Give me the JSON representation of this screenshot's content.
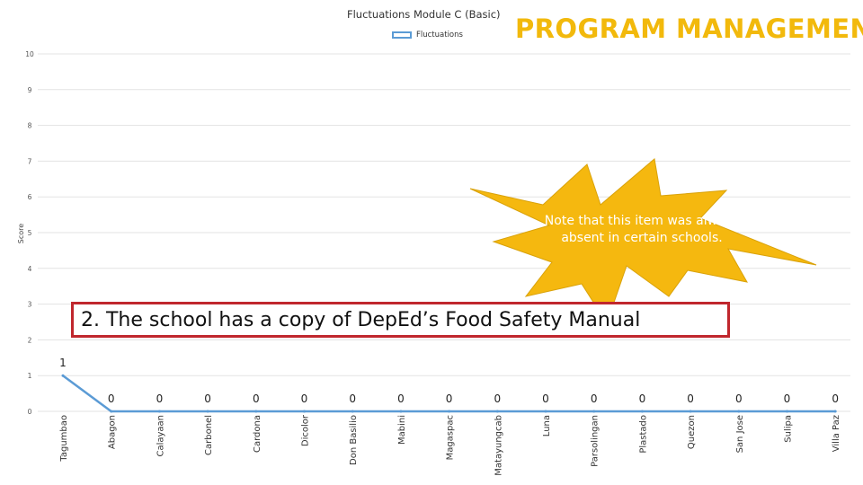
{
  "header": {
    "banner": "PROGRAM MANAGEMENT"
  },
  "callout": {
    "text": "Note that this item was always absent in certain schools."
  },
  "boxed_label": "2. The school has a copy of DepEd’s Food Safety Manual",
  "colors": {
    "series_line": "#5b9bd5",
    "gridline": "#e3e3e3",
    "banner": "#f2b90c",
    "starburst": "#f5b80f",
    "box_border": "#c0272d"
  },
  "chart_data": {
    "type": "line",
    "title": "Fluctuations Module C (Basic)",
    "ylabel": "Score",
    "xlabel": "",
    "ylim": [
      0,
      10
    ],
    "yticks": [
      0,
      1,
      2,
      3,
      4,
      5,
      6,
      7,
      8,
      9,
      10
    ],
    "grid": true,
    "legend_position": "top",
    "categories": [
      "Tagumbao",
      "Abagon",
      "Calayaan",
      "Carbonel",
      "Cardona",
      "Dicolor",
      "Don Basilio",
      "Mabini",
      "Magaspac",
      "Matayungcab",
      "Luna",
      "Parsolingan",
      "Plastado",
      "Quezon",
      "San Jose",
      "Sulipa",
      "Villa Paz"
    ],
    "series": [
      {
        "name": "Fluctuations",
        "values": [
          1,
          0,
          0,
          0,
          0,
          0,
          0,
          0,
          0,
          0,
          0,
          0,
          0,
          0,
          0,
          0,
          0
        ]
      }
    ]
  }
}
